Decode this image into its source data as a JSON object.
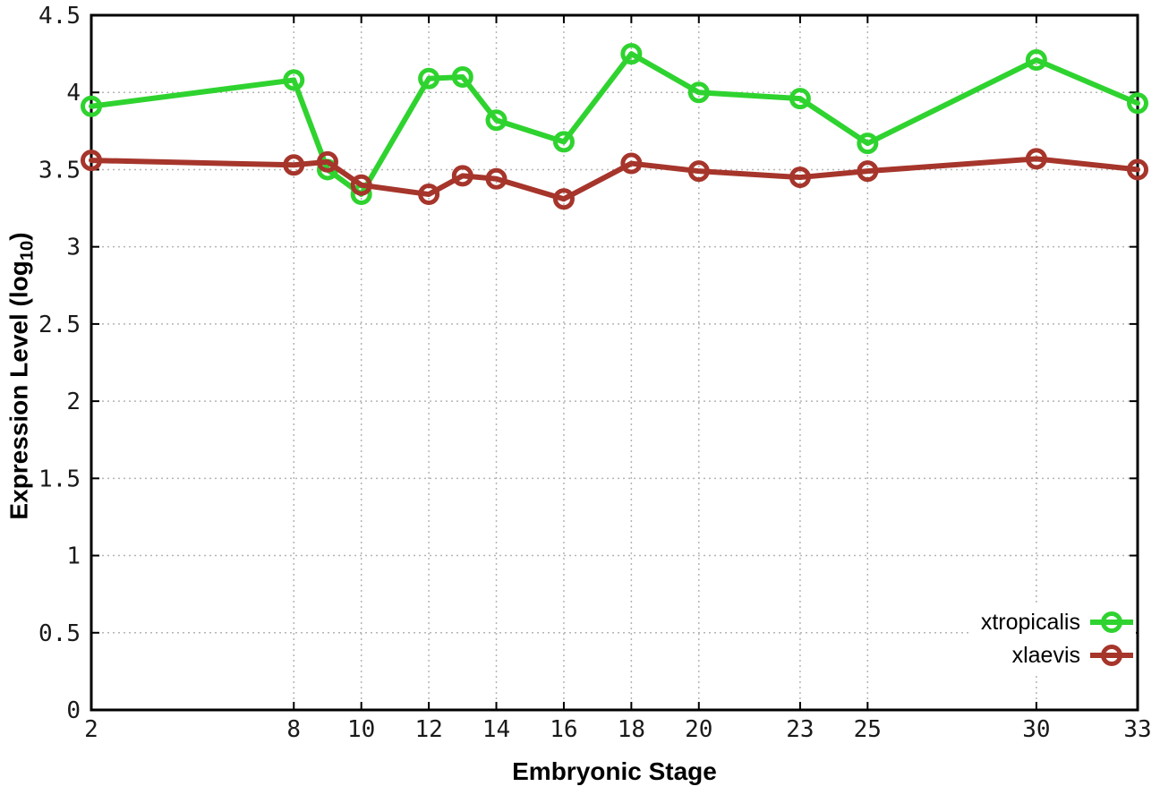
{
  "chart_data": {
    "type": "line",
    "xlabel": "Embryonic Stage",
    "ylabel_main": "Expression Level (log",
    "ylabel_sub": "10",
    "ylabel_suffix": ")",
    "x": [
      2,
      8,
      9,
      10,
      12,
      13,
      14,
      16,
      18,
      20,
      23,
      25,
      30,
      33
    ],
    "series": [
      {
        "name": "xtropicalis",
        "color": "#2fd32f",
        "marker": "open-circle",
        "values": [
          3.91,
          4.08,
          3.5,
          3.34,
          4.09,
          4.1,
          3.82,
          3.68,
          4.25,
          4.0,
          3.96,
          3.67,
          4.21,
          3.93
        ]
      },
      {
        "name": "xlaevis",
        "color": "#a6352b",
        "marker": "open-circle",
        "values": [
          3.56,
          3.53,
          3.55,
          3.4,
          3.34,
          3.46,
          3.44,
          3.31,
          3.54,
          3.49,
          3.45,
          3.49,
          3.57,
          3.5
        ]
      }
    ],
    "xticks": [
      2,
      8,
      10,
      12,
      14,
      16,
      18,
      20,
      23,
      25,
      30,
      33
    ],
    "yticks": [
      0,
      0.5,
      1,
      1.5,
      2,
      2.5,
      3,
      3.5,
      4,
      4.5
    ],
    "xlim": [
      2,
      33
    ],
    "ylim": [
      0,
      4.5
    ],
    "grid": true,
    "legend_position": "bottom-right",
    "colors": {
      "axis": "#000000",
      "gridline": "#b4b4b4",
      "background": "#ffffff"
    }
  }
}
